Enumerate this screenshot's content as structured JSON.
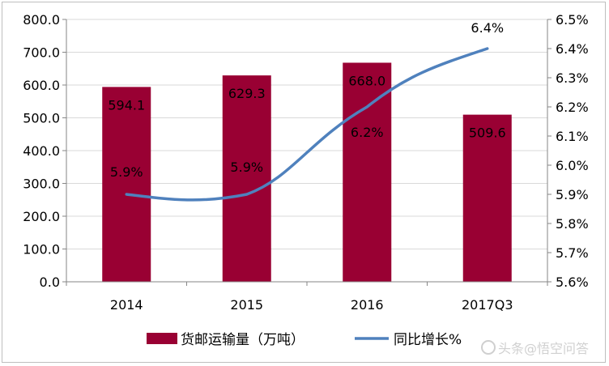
{
  "chart_data": {
    "type": "bar",
    "categories": [
      "2014",
      "2015",
      "2016",
      "2017Q3"
    ],
    "series": [
      {
        "name": "货邮运输量（万吨）",
        "type": "bar",
        "axis": "left",
        "color": "#990033",
        "values": [
          594.1,
          629.3,
          668.0,
          509.6
        ],
        "labels": [
          "594.1",
          "629.3",
          "668.0",
          "509.6"
        ]
      },
      {
        "name": "同比增长%",
        "type": "line",
        "axis": "right",
        "color": "#4f81bd",
        "values": [
          5.9,
          5.9,
          6.2,
          6.4
        ],
        "labels": [
          "5.9%",
          "5.9%",
          "6.2%",
          "6.4%"
        ]
      }
    ],
    "ylim_left": [
      0,
      800
    ],
    "yticks_left": [
      "0.0",
      "100.0",
      "200.0",
      "300.0",
      "400.0",
      "500.0",
      "600.0",
      "700.0",
      "800.0"
    ],
    "ylim_right": [
      5.6,
      6.5
    ],
    "yticks_right": [
      "5.6%",
      "5.7%",
      "5.8%",
      "5.9%",
      "6.0%",
      "6.1%",
      "6.2%",
      "6.3%",
      "6.4%",
      "6.5%"
    ],
    "grid": true,
    "legend_position": "bottom"
  },
  "watermark": "头条@悟空问答"
}
